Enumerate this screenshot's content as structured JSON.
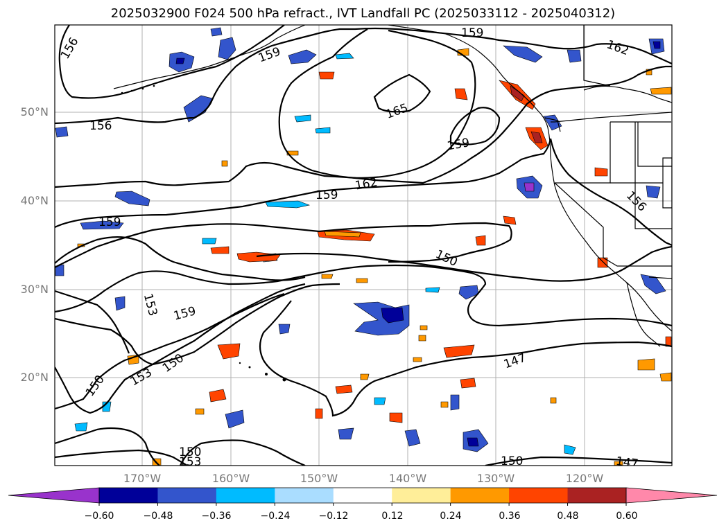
{
  "title": "2025032900 F024 500 hPa refract., IVT Landfall PC (2025033112 - 2025040312)",
  "lat_labels": [
    "50°N",
    "40°N",
    "30°N",
    "20°N"
  ],
  "lon_labels": [
    "170°W",
    "160°W",
    "150°W",
    "140°W",
    "130°W",
    "120°W"
  ],
  "contour_labels": [
    "156",
    "156",
    "159",
    "159",
    "165",
    "159",
    "162",
    "159",
    "162",
    "156",
    "150",
    "159",
    "153",
    "159",
    "150",
    "153",
    "150",
    "147",
    "150",
    "153",
    "150",
    "147"
  ],
  "colorbar": {
    "ticks": [
      "−0.60",
      "−0.48",
      "−0.36",
      "−0.24",
      "−0.12",
      "0.12",
      "0.24",
      "0.36",
      "0.48",
      "0.60"
    ],
    "colors": [
      "#9933cc",
      "#000099",
      "#3355cc",
      "#00bbff",
      "#aaddff",
      "#ffffff",
      "#ffee99",
      "#ff9900",
      "#ff4400",
      "#aa2222",
      "#ff88aa"
    ]
  },
  "fill_colors": {
    "neg_strong": "#000099",
    "neg_mid": "#3355cc",
    "neg_light": "#00bbff",
    "neg_pale": "#aaddff",
    "pos_pale": "#ffee99",
    "pos_mid": "#ff9900",
    "pos_strong": "#ff4400",
    "pos_dark": "#aa2222",
    "pos_pink": "#ff88aa",
    "purple": "#9933cc"
  }
}
